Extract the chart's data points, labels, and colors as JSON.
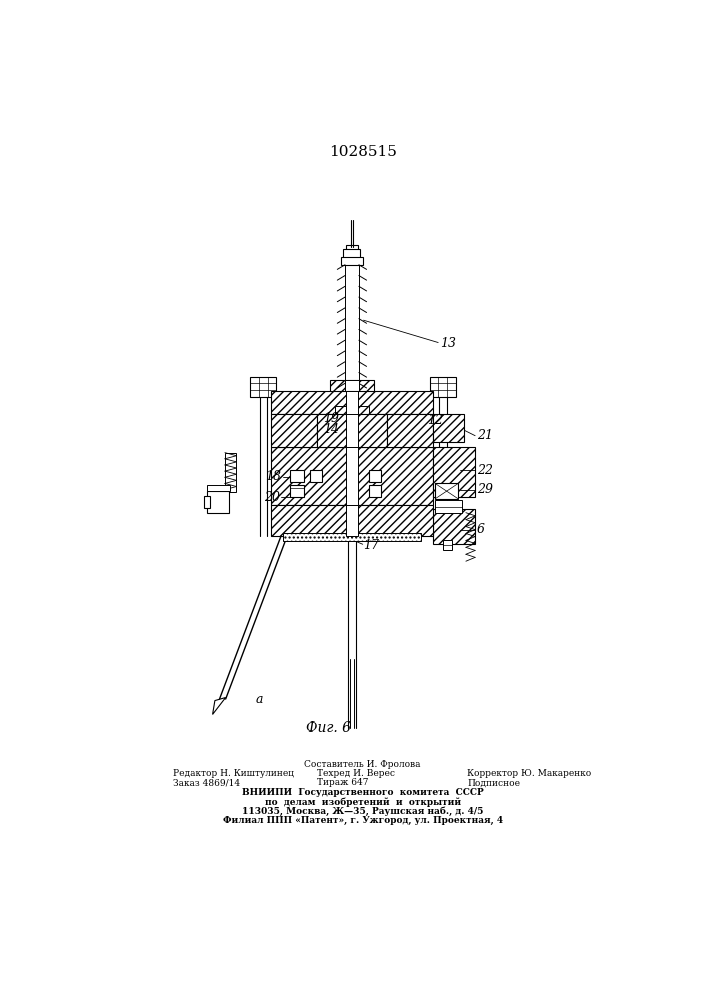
{
  "title": "1028515",
  "fig_label": "Фиг. 6",
  "bg_color": "#ffffff",
  "line_color": "#000000",
  "title_fontsize": 11,
  "label_fontsize": 9,
  "footer": {
    "col1_line1": "Редактор Н. Киштулинец",
    "col1_line2": "Заказ 4869/14",
    "col2_line0": "Составитель И. Фролова",
    "col2_line1": "Техред И. Верес",
    "col2_line2": "Тираж 647",
    "col3_line1": "Корректор Ю. Макаренко",
    "col3_line2": "Подписное",
    "vniipи1": "ВНИИПИ  Государственного  комитета  СССР",
    "vniipи2": "по  делам  изобретений  и  открытий",
    "addr1": "113035, Москва, Ж—35, Раушская наб., д. 4/5",
    "addr2": "Филиал ППП «Патент», г. Ужгород, ул. Проектная, 4"
  }
}
